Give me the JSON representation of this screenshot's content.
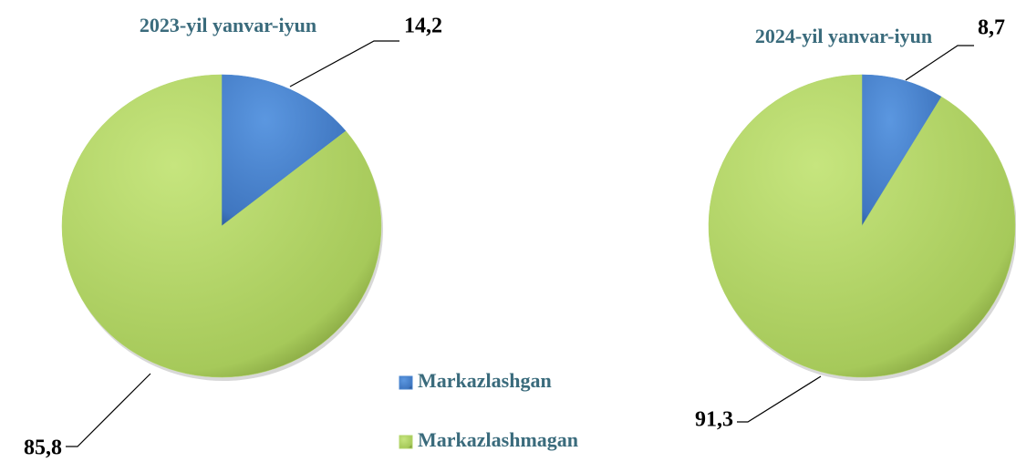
{
  "chart_data": [
    {
      "type": "pie",
      "title": "2023-yil yanvar-iyun",
      "categories": [
        "Markazlashgan",
        "Markazlashmagan"
      ],
      "values": [
        14.2,
        85.8
      ],
      "value_labels": [
        "14,2",
        "85,8"
      ],
      "colors": [
        "#4a86d0",
        "#b3d66a"
      ]
    },
    {
      "type": "pie",
      "title": "2024-yil yanvar-iyun",
      "values": [
        8.7,
        91.3
      ],
      "value_labels": [
        "8,7",
        "91,3"
      ],
      "colors": [
        "#4a86d0",
        "#b3d66a"
      ]
    }
  ]
}
